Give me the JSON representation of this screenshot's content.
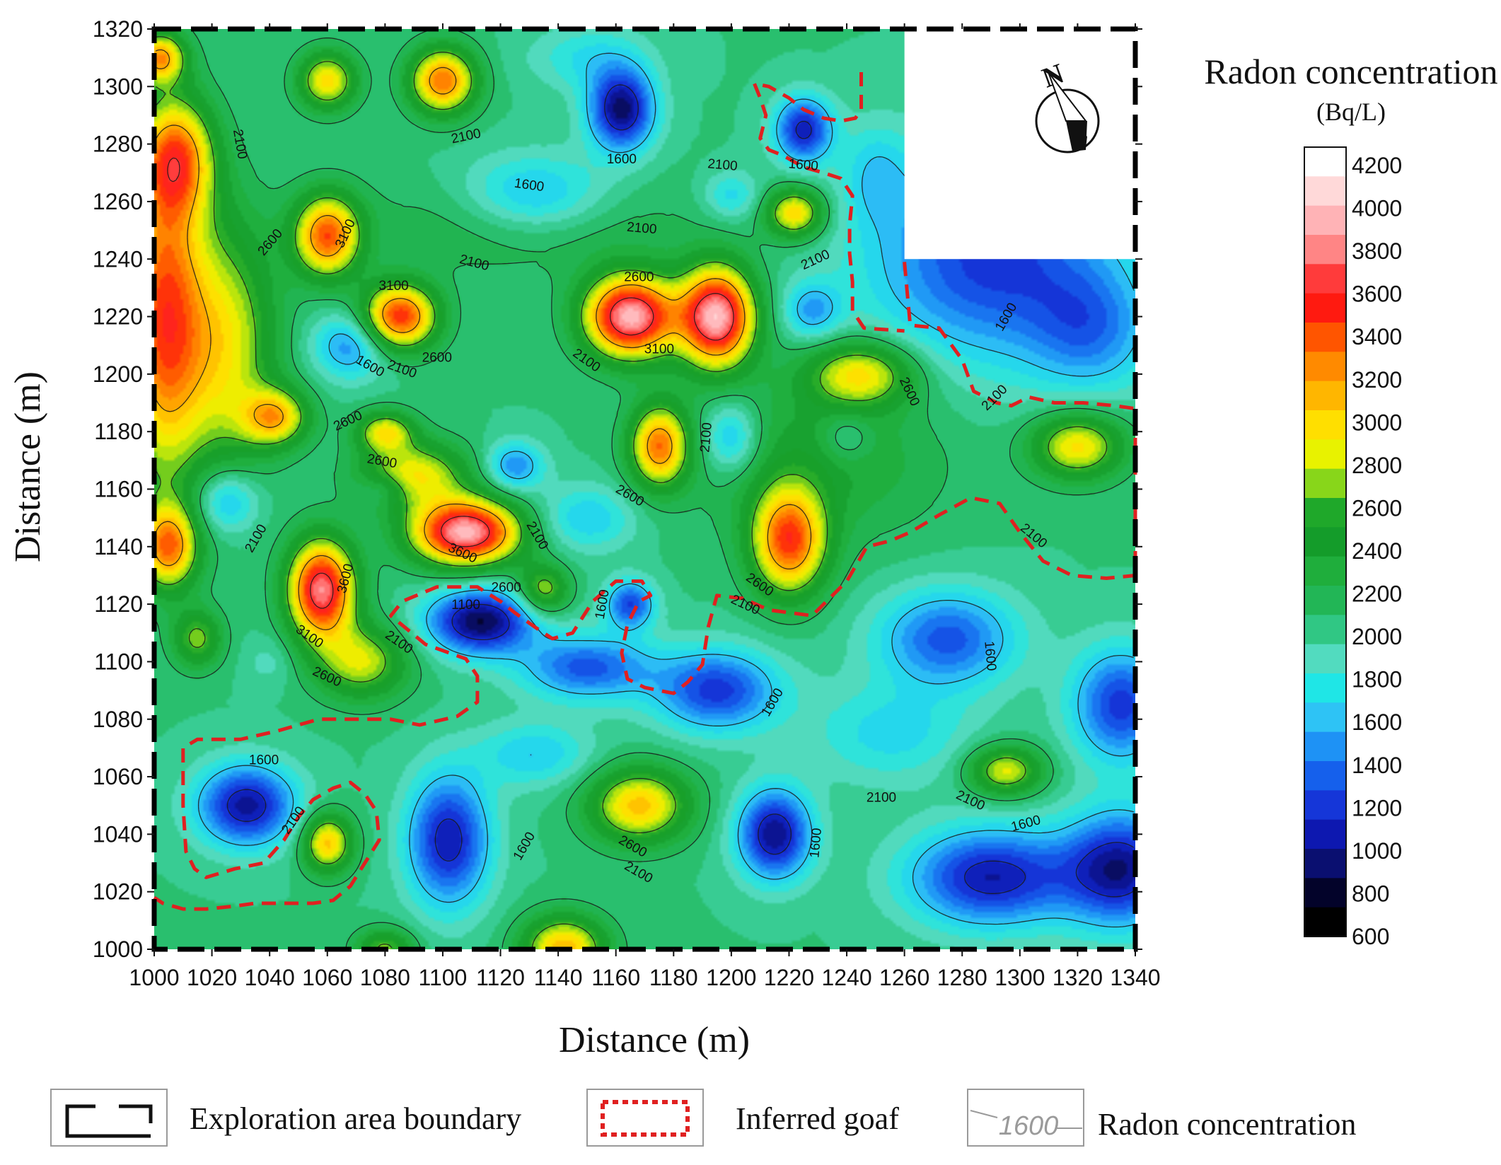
{
  "chart_data": {
    "type": "heatmap",
    "subtype": "contour",
    "title": "",
    "xlabel": "Distance (m)",
    "ylabel": "Distance (m)",
    "xlim": [
      1000,
      1340
    ],
    "ylim": [
      1000,
      1320
    ],
    "x_ticks": [
      1000,
      1020,
      1040,
      1060,
      1080,
      1100,
      1120,
      1140,
      1160,
      1180,
      1200,
      1220,
      1240,
      1260,
      1280,
      1300,
      1320,
      1340
    ],
    "y_ticks": [
      1000,
      1020,
      1040,
      1060,
      1080,
      1100,
      1120,
      1140,
      1160,
      1180,
      1200,
      1220,
      1240,
      1260,
      1280,
      1300,
      1320
    ],
    "grid": false,
    "colorbar": {
      "title": "Radon concentration",
      "unit": "(Bq/L)",
      "ticks": [
        4200,
        4000,
        3800,
        3600,
        3400,
        3200,
        3000,
        2800,
        2600,
        2400,
        2200,
        2000,
        1800,
        1600,
        1400,
        1200,
        1000,
        800,
        600
      ],
      "colors": [
        "#ffffff",
        "#ffd9d9",
        "#ffb3b6",
        "#ff8585",
        "#ff3b3b",
        "#ff1a10",
        "#ff5500",
        "#ff8a00",
        "#ffb600",
        "#ffdf00",
        "#e8f200",
        "#88d61a",
        "#1fa82a",
        "#149c2a",
        "#1fae3c",
        "#22b656",
        "#30c784",
        "#52dbbf",
        "#1fe6e6",
        "#2ec3f5",
        "#1e92f5",
        "#1560ec",
        "#1536d8",
        "#0d18b0",
        "#0a0f70",
        "#03032a",
        "#000000"
      ]
    },
    "contour_levels": [
      1100,
      1600,
      2100,
      2600,
      3100,
      3600
    ],
    "background_value": 2000,
    "peaks": [
      {
        "x": 1003,
        "y": 1220,
        "value": 3350,
        "sx": 10,
        "sy": 40
      },
      {
        "x": 1008,
        "y": 1275,
        "value": 3100,
        "sx": 9,
        "sy": 14
      },
      {
        "x": 1005,
        "y": 1140,
        "value": 3200,
        "sx": 7,
        "sy": 10
      },
      {
        "x": 1002,
        "y": 1310,
        "value": 3100,
        "sx": 6,
        "sy": 6
      },
      {
        "x": 1025,
        "y": 1210,
        "value": 2850,
        "sx": 12,
        "sy": 30
      },
      {
        "x": 1060,
        "y": 1302,
        "value": 2950,
        "sx": 7,
        "sy": 7
      },
      {
        "x": 1100,
        "y": 1302,
        "value": 3300,
        "sx": 8,
        "sy": 8
      },
      {
        "x": 1060,
        "y": 1248,
        "value": 3350,
        "sx": 8,
        "sy": 10
      },
      {
        "x": 1085,
        "y": 1220,
        "value": 3500,
        "sx": 9,
        "sy": 8
      },
      {
        "x": 1042,
        "y": 1185,
        "value": 3000,
        "sx": 8,
        "sy": 7
      },
      {
        "x": 1080,
        "y": 1180,
        "value": 2850,
        "sx": 7,
        "sy": 5
      },
      {
        "x": 1108,
        "y": 1145,
        "value": 3950,
        "sx": 13,
        "sy": 8
      },
      {
        "x": 1090,
        "y": 1165,
        "value": 2900,
        "sx": 13,
        "sy": 8
      },
      {
        "x": 1058,
        "y": 1125,
        "value": 3800,
        "sx": 8,
        "sy": 12
      },
      {
        "x": 1072,
        "y": 1100,
        "value": 2800,
        "sx": 11,
        "sy": 9
      },
      {
        "x": 1135,
        "y": 1125,
        "value": 2750,
        "sx": 6,
        "sy": 6
      },
      {
        "x": 1165,
        "y": 1220,
        "value": 3950,
        "sx": 11,
        "sy": 10
      },
      {
        "x": 1195,
        "y": 1220,
        "value": 3950,
        "sx": 9,
        "sy": 12
      },
      {
        "x": 1175,
        "y": 1175,
        "value": 3250,
        "sx": 7,
        "sy": 10
      },
      {
        "x": 1220,
        "y": 1142,
        "value": 3400,
        "sx": 9,
        "sy": 13
      },
      {
        "x": 1222,
        "y": 1256,
        "value": 3000,
        "sx": 7,
        "sy": 6
      },
      {
        "x": 1245,
        "y": 1200,
        "value": 2900,
        "sx": 13,
        "sy": 8
      },
      {
        "x": 1320,
        "y": 1175,
        "value": 2950,
        "sx": 11,
        "sy": 8
      },
      {
        "x": 1168,
        "y": 1050,
        "value": 3050,
        "sx": 12,
        "sy": 9
      },
      {
        "x": 1295,
        "y": 1062,
        "value": 2850,
        "sx": 9,
        "sy": 6
      },
      {
        "x": 1060,
        "y": 1037,
        "value": 3050,
        "sx": 6,
        "sy": 7
      },
      {
        "x": 1142,
        "y": 1000,
        "value": 3100,
        "sx": 10,
        "sy": 8
      },
      {
        "x": 1015,
        "y": 1108,
        "value": 2650,
        "sx": 6,
        "sy": 7
      },
      {
        "x": 1080,
        "y": 1000,
        "value": 2650,
        "sx": 7,
        "sy": 5
      },
      {
        "x": 1130,
        "y": 1252,
        "value": 2250,
        "sx": 40,
        "sy": 12
      },
      {
        "x": 1230,
        "y": 1172,
        "value": 2350,
        "sx": 30,
        "sy": 20
      },
      {
        "x": 1162,
        "y": 1292,
        "value": 850,
        "sx": 8,
        "sy": 10
      },
      {
        "x": 1225,
        "y": 1285,
        "value": 1050,
        "sx": 7,
        "sy": 8
      },
      {
        "x": 1113,
        "y": 1114,
        "value": 800,
        "sx": 13,
        "sy": 8
      },
      {
        "x": 1150,
        "y": 1098,
        "value": 1250,
        "sx": 16,
        "sy": 8
      },
      {
        "x": 1195,
        "y": 1090,
        "value": 1150,
        "sx": 15,
        "sy": 10
      },
      {
        "x": 1165,
        "y": 1120,
        "value": 1200,
        "sx": 6,
        "sy": 6
      },
      {
        "x": 1032,
        "y": 1050,
        "value": 950,
        "sx": 12,
        "sy": 10
      },
      {
        "x": 1102,
        "y": 1038,
        "value": 1000,
        "sx": 10,
        "sy": 16
      },
      {
        "x": 1215,
        "y": 1040,
        "value": 900,
        "sx": 9,
        "sy": 11
      },
      {
        "x": 1290,
        "y": 1025,
        "value": 1000,
        "sx": 20,
        "sy": 12
      },
      {
        "x": 1335,
        "y": 1028,
        "value": 950,
        "sx": 14,
        "sy": 14
      },
      {
        "x": 1335,
        "y": 1085,
        "value": 1150,
        "sx": 12,
        "sy": 14
      },
      {
        "x": 1275,
        "y": 1108,
        "value": 1250,
        "sx": 17,
        "sy": 12
      },
      {
        "x": 1290,
        "y": 1240,
        "value": 1150,
        "sx": 30,
        "sy": 25
      },
      {
        "x": 1325,
        "y": 1215,
        "value": 1500,
        "sx": 15,
        "sy": 15
      },
      {
        "x": 1132,
        "y": 1262,
        "value": 1450,
        "sx": 18,
        "sy": 10
      },
      {
        "x": 1068,
        "y": 1210,
        "value": 1400,
        "sx": 9,
        "sy": 8
      },
      {
        "x": 1025,
        "y": 1156,
        "value": 1450,
        "sx": 8,
        "sy": 8
      },
      {
        "x": 1200,
        "y": 1178,
        "value": 1450,
        "sx": 7,
        "sy": 9
      },
      {
        "x": 1125,
        "y": 1168,
        "value": 1400,
        "sx": 7,
        "sy": 6
      },
      {
        "x": 1228,
        "y": 1222,
        "value": 1500,
        "sx": 7,
        "sy": 7
      },
      {
        "x": 1200,
        "y": 1262,
        "value": 1650,
        "sx": 7,
        "sy": 6
      },
      {
        "x": 1080,
        "y": 1160,
        "value": 1700,
        "sx": 6,
        "sy": 4
      },
      {
        "x": 1240,
        "y": 1178,
        "value": 1700,
        "sx": 6,
        "sy": 6
      },
      {
        "x": 1150,
        "y": 1150,
        "value": 1600,
        "sx": 12,
        "sy": 8
      },
      {
        "x": 1040,
        "y": 1100,
        "value": 1850,
        "sx": 6,
        "sy": 6
      },
      {
        "x": 1150,
        "y": 1310,
        "value": 1700,
        "sx": 14,
        "sy": 8
      },
      {
        "x": 1250,
        "y": 1270,
        "value": 1700,
        "sx": 8,
        "sy": 12
      },
      {
        "x": 1132,
        "y": 1068,
        "value": 1600,
        "sx": 14,
        "sy": 8
      },
      {
        "x": 1255,
        "y": 1075,
        "value": 1650,
        "sx": 20,
        "sy": 12
      }
    ],
    "boundary_blank": {
      "x": [
        1260,
        1340
      ],
      "y": [
        1240,
        1320
      ]
    },
    "contour_labels": [
      {
        "x": 1030,
        "y": 1280,
        "text": "2100",
        "rot": 80
      },
      {
        "x": 1108,
        "y": 1283,
        "text": "2100",
        "rot": -12
      },
      {
        "x": 1162,
        "y": 1275,
        "text": "1600",
        "rot": 0
      },
      {
        "x": 1197,
        "y": 1273,
        "text": "2100",
        "rot": 5
      },
      {
        "x": 1225,
        "y": 1273,
        "text": "1600",
        "rot": 5
      },
      {
        "x": 1130,
        "y": 1266,
        "text": "1600",
        "rot": 8
      },
      {
        "x": 1169,
        "y": 1251,
        "text": "2100",
        "rot": 5
      },
      {
        "x": 1066,
        "y": 1249,
        "text": "3100",
        "rot": -65
      },
      {
        "x": 1040,
        "y": 1246,
        "text": "2600",
        "rot": -50
      },
      {
        "x": 1111,
        "y": 1239,
        "text": "2100",
        "rot": 15
      },
      {
        "x": 1229,
        "y": 1240,
        "text": "2100",
        "rot": -25
      },
      {
        "x": 1083,
        "y": 1231,
        "text": "3100",
        "rot": 0
      },
      {
        "x": 1168,
        "y": 1234,
        "text": "2600",
        "rot": 0
      },
      {
        "x": 1295,
        "y": 1220,
        "text": "1600",
        "rot": -60
      },
      {
        "x": 1175,
        "y": 1209,
        "text": "3100",
        "rot": 0
      },
      {
        "x": 1098,
        "y": 1206,
        "text": "2600",
        "rot": 0
      },
      {
        "x": 1075,
        "y": 1203,
        "text": "1600",
        "rot": 30
      },
      {
        "x": 1086,
        "y": 1202,
        "text": "2100",
        "rot": 20
      },
      {
        "x": 1150,
        "y": 1205,
        "text": "2100",
        "rot": 35
      },
      {
        "x": 1262,
        "y": 1194,
        "text": "2600",
        "rot": 65
      },
      {
        "x": 1291,
        "y": 1192,
        "text": "2100",
        "rot": -45
      },
      {
        "x": 1067,
        "y": 1184,
        "text": "2600",
        "rot": -25
      },
      {
        "x": 1191,
        "y": 1178,
        "text": "2100",
        "rot": -85
      },
      {
        "x": 1079,
        "y": 1170,
        "text": "2600",
        "rot": 10
      },
      {
        "x": 1165,
        "y": 1158,
        "text": "2600",
        "rot": 30
      },
      {
        "x": 1035,
        "y": 1143,
        "text": "2100",
        "rot": -60
      },
      {
        "x": 1133,
        "y": 1144,
        "text": "2100",
        "rot": 60
      },
      {
        "x": 1107,
        "y": 1138,
        "text": "3600",
        "rot": 25
      },
      {
        "x": 1305,
        "y": 1144,
        "text": "2100",
        "rot": 40
      },
      {
        "x": 1066,
        "y": 1129,
        "text": "3600",
        "rot": -75
      },
      {
        "x": 1122,
        "y": 1126,
        "text": "2600",
        "rot": 0
      },
      {
        "x": 1210,
        "y": 1127,
        "text": "2600",
        "rot": 35
      },
      {
        "x": 1155,
        "y": 1120,
        "text": "1600",
        "rot": -80
      },
      {
        "x": 1205,
        "y": 1120,
        "text": "2100",
        "rot": 25
      },
      {
        "x": 1108,
        "y": 1120,
        "text": "1100",
        "rot": 0
      },
      {
        "x": 1054,
        "y": 1109,
        "text": "3100",
        "rot": 35
      },
      {
        "x": 1085,
        "y": 1107,
        "text": "2100",
        "rot": 35
      },
      {
        "x": 1290,
        "y": 1102,
        "text": "1600",
        "rot": 85
      },
      {
        "x": 1060,
        "y": 1095,
        "text": "2600",
        "rot": 25
      },
      {
        "x": 1214,
        "y": 1086,
        "text": "1600",
        "rot": -60
      },
      {
        "x": 1038,
        "y": 1066,
        "text": "1600",
        "rot": 0
      },
      {
        "x": 1252,
        "y": 1053,
        "text": "2100",
        "rot": 0
      },
      {
        "x": 1283,
        "y": 1052,
        "text": "2100",
        "rot": 25
      },
      {
        "x": 1048,
        "y": 1045,
        "text": "2100",
        "rot": -55
      },
      {
        "x": 1166,
        "y": 1036,
        "text": "2600",
        "rot": 30
      },
      {
        "x": 1302,
        "y": 1044,
        "text": "1600",
        "rot": -15
      },
      {
        "x": 1128,
        "y": 1036,
        "text": "1600",
        "rot": -60
      },
      {
        "x": 1229,
        "y": 1037,
        "text": "1600",
        "rot": -85
      },
      {
        "x": 1168,
        "y": 1027,
        "text": "2100",
        "rot": 30
      }
    ],
    "goaf_outlines": [
      [
        [
          1260,
          1239
        ],
        [
          1262,
          1217
        ],
        [
          1272,
          1216
        ],
        [
          1280,
          1205
        ],
        [
          1284,
          1194
        ],
        [
          1292,
          1190
        ],
        [
          1297,
          1189
        ],
        [
          1303,
          1192
        ],
        [
          1312,
          1190
        ],
        [
          1322,
          1190
        ],
        [
          1333,
          1189
        ],
        [
          1340,
          1188
        ],
        [
          1340,
          1130
        ],
        [
          1330,
          1129
        ],
        [
          1318,
          1130
        ],
        [
          1308,
          1135
        ],
        [
          1300,
          1145
        ],
        [
          1293,
          1155
        ],
        [
          1283,
          1157
        ],
        [
          1272,
          1151
        ],
        [
          1262,
          1145
        ],
        [
          1255,
          1142
        ],
        [
          1247,
          1140
        ],
        [
          1240,
          1128
        ],
        [
          1228,
          1116
        ],
        [
          1213,
          1118
        ],
        [
          1204,
          1122
        ],
        [
          1195,
          1123
        ],
        [
          1192,
          1112
        ],
        [
          1190,
          1099
        ],
        [
          1185,
          1093
        ],
        [
          1180,
          1089
        ],
        [
          1170,
          1091
        ],
        [
          1164,
          1094
        ],
        [
          1162,
          1103
        ],
        [
          1164,
          1113
        ],
        [
          1168,
          1121
        ],
        [
          1172,
          1123
        ],
        [
          1169,
          1128
        ],
        [
          1160,
          1128
        ],
        [
          1152,
          1121
        ],
        [
          1145,
          1110
        ],
        [
          1138,
          1108
        ],
        [
          1132,
          1112
        ],
        [
          1125,
          1117
        ],
        [
          1120,
          1121
        ],
        [
          1112,
          1126
        ],
        [
          1098,
          1126
        ],
        [
          1086,
          1121
        ],
        [
          1082,
          1116
        ],
        [
          1094,
          1106
        ],
        [
          1108,
          1101
        ],
        [
          1112,
          1095
        ],
        [
          1112,
          1086
        ],
        [
          1105,
          1081
        ],
        [
          1092,
          1078
        ],
        [
          1082,
          1080
        ],
        [
          1068,
          1080
        ],
        [
          1057,
          1080
        ],
        [
          1043,
          1076
        ],
        [
          1030,
          1073
        ],
        [
          1015,
          1073
        ],
        [
          1010,
          1070
        ],
        [
          1010,
          1050
        ],
        [
          1011,
          1034
        ],
        [
          1014,
          1028
        ],
        [
          1018,
          1025
        ],
        [
          1028,
          1028
        ],
        [
          1038,
          1030
        ],
        [
          1045,
          1038
        ],
        [
          1050,
          1046
        ],
        [
          1055,
          1052
        ],
        [
          1062,
          1056
        ],
        [
          1068,
          1058
        ],
        [
          1073,
          1054
        ],
        [
          1077,
          1048
        ],
        [
          1078,
          1038
        ],
        [
          1073,
          1030
        ],
        [
          1068,
          1022
        ],
        [
          1062,
          1017
        ],
        [
          1055,
          1016
        ],
        [
          1045,
          1016
        ],
        [
          1035,
          1016
        ],
        [
          1028,
          1015
        ],
        [
          1018,
          1014
        ],
        [
          1010,
          1014
        ],
        [
          1003,
          1016
        ],
        [
          1000,
          1018
        ]
      ],
      [
        [
          1245,
          1305
        ],
        [
          1245,
          1292
        ],
        [
          1243,
          1289
        ],
        [
          1238,
          1288
        ],
        [
          1232,
          1289
        ],
        [
          1225,
          1292
        ],
        [
          1220,
          1296
        ],
        [
          1213,
          1300
        ],
        [
          1208,
          1301
        ],
        [
          1210,
          1296
        ],
        [
          1212,
          1290
        ],
        [
          1210,
          1282
        ],
        [
          1213,
          1278
        ],
        [
          1218,
          1276
        ],
        [
          1225,
          1272
        ],
        [
          1232,
          1270
        ],
        [
          1238,
          1268
        ],
        [
          1242,
          1262
        ],
        [
          1241,
          1252
        ],
        [
          1241,
          1242
        ],
        [
          1242,
          1232
        ],
        [
          1242,
          1222
        ],
        [
          1246,
          1216
        ],
        [
          1260,
          1215
        ]
      ]
    ]
  },
  "compass": {
    "label": "N"
  },
  "legend": [
    {
      "key": "exploration",
      "label": "Exploration area boundary"
    },
    {
      "key": "goaf",
      "label": "Inferred goaf"
    },
    {
      "key": "radon",
      "label": "Radon concentration",
      "sample": "1600"
    }
  ],
  "colors": {
    "boundary": "#000000",
    "goaf": "#e02020",
    "contour_line": "#1a1a1a"
  }
}
